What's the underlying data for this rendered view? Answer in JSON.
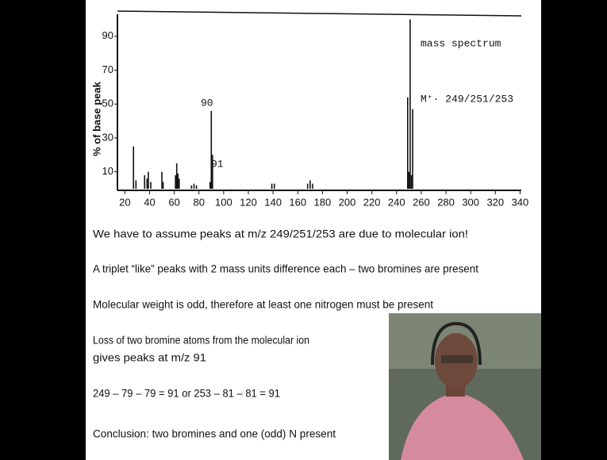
{
  "chart_data": {
    "type": "bar",
    "ylabel": "% of base peak",
    "annotations": [
      "90",
      "91",
      "mass spectrum",
      "M⁺· 249/251/253"
    ],
    "x": [
      27,
      29,
      36,
      38,
      39,
      41,
      50,
      51,
      61,
      62,
      63,
      64,
      74,
      76,
      78,
      89,
      90,
      91,
      139,
      141,
      168,
      170,
      172,
      249,
      250,
      251,
      252,
      253
    ],
    "values": [
      25,
      5,
      8,
      6,
      10,
      4,
      10,
      4,
      8,
      15,
      9,
      6,
      2,
      3,
      2,
      4,
      46,
      20,
      3,
      3,
      3,
      5,
      3,
      54,
      10,
      100,
      8,
      47
    ],
    "color": "#111111",
    "xlim": [
      14,
      341
    ],
    "xticks": [
      20,
      40,
      60,
      80,
      100,
      120,
      140,
      160,
      180,
      200,
      220,
      240,
      260,
      280,
      300,
      320,
      340
    ],
    "ylim": [
      0,
      103
    ],
    "yticks": [
      10,
      30,
      50,
      70,
      90
    ]
  },
  "slide": {
    "lines": [
      "We have to assume peaks at m/z 249/251/253 are due to molecular ion!",
      "A triplet “like” peaks with 2 mass units difference each – two bromines are present",
      "Molecular weight is odd, therefore at least one nitrogen must be present",
      "Loss of two bromine atoms from the molecular ion",
      "gives peaks at m/z 91",
      "249 – 79 – 79 = 91 or 253 – 81 – 81 = 91",
      "Conclusion:  two bromines and one (odd) N present"
    ]
  }
}
